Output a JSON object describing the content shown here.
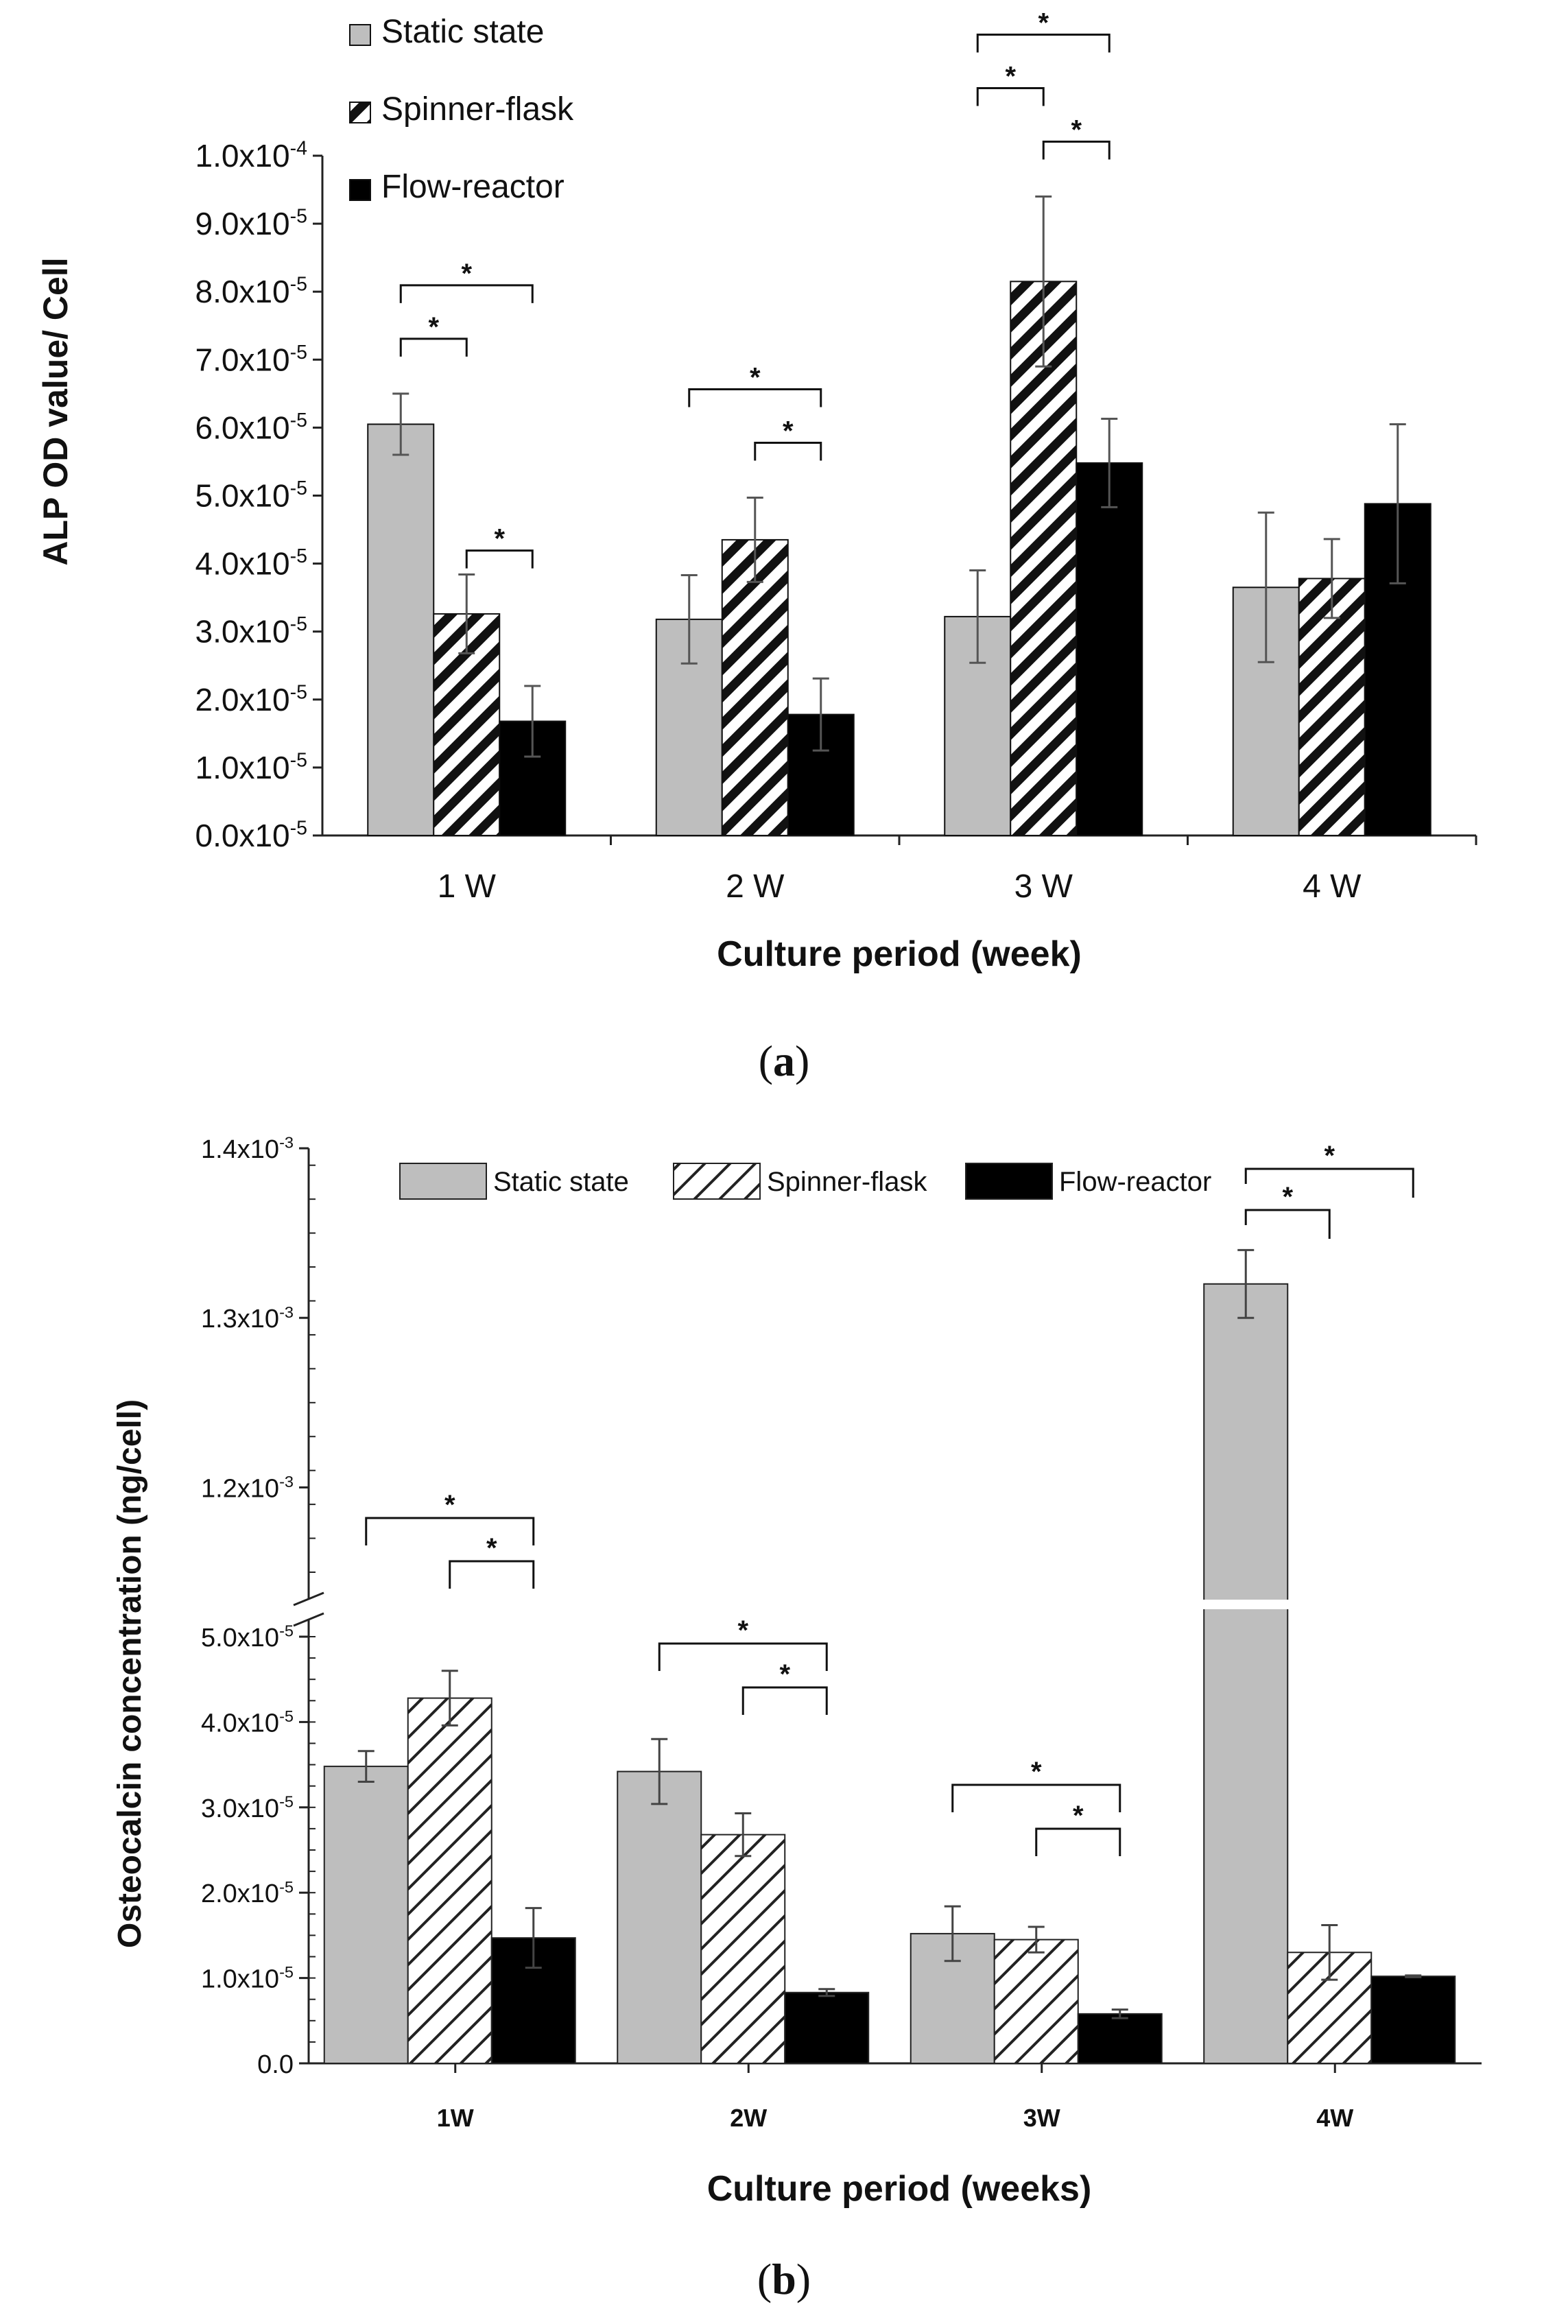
{
  "chart_data": [
    {
      "type": "bar",
      "panel_label": "a",
      "ylabel": "ALP OD value/ Cell",
      "xlabel": "Culture period (week)",
      "categories": [
        "1 W",
        "2 W",
        "3 W",
        "4 W"
      ],
      "ylim": [
        0,
        0.0001
      ],
      "yticks": [
        {
          "base": "0.0x10",
          "exp": "-5",
          "value": 0
        },
        {
          "base": "1.0x10",
          "exp": "-5",
          "value": 1e-05
        },
        {
          "base": "2.0x10",
          "exp": "-5",
          "value": 2e-05
        },
        {
          "base": "3.0x10",
          "exp": "-5",
          "value": 3e-05
        },
        {
          "base": "4.0x10",
          "exp": "-5",
          "value": 4e-05
        },
        {
          "base": "5.0x10",
          "exp": "-5",
          "value": 5e-05
        },
        {
          "base": "6.0x10",
          "exp": "-5",
          "value": 6e-05
        },
        {
          "base": "7.0x10",
          "exp": "-5",
          "value": 7e-05
        },
        {
          "base": "8.0x10",
          "exp": "-5",
          "value": 8e-05
        },
        {
          "base": "9.0x10",
          "exp": "-5",
          "value": 9e-05
        },
        {
          "base": "1.0x10",
          "exp": "-4",
          "value": 0.0001
        }
      ],
      "series": [
        {
          "name": "Static state",
          "style": "gray",
          "values": [
            6.05e-05,
            3.18e-05,
            3.22e-05,
            3.65e-05
          ],
          "errors": [
            4.5e-06,
            6.5e-06,
            6.8e-06,
            1.1e-05
          ]
        },
        {
          "name": "Spinner-flask",
          "style": "hatch",
          "values": [
            3.26e-05,
            4.35e-05,
            8.15e-05,
            3.78e-05
          ],
          "errors": [
            5.8e-06,
            6.2e-06,
            1.25e-05,
            5.8e-06
          ]
        },
        {
          "name": "Flow-reactor",
          "style": "black",
          "values": [
            1.68e-05,
            1.78e-05,
            5.48e-05,
            4.88e-05
          ],
          "errors": [
            5.2e-06,
            5.3e-06,
            6.5e-06,
            1.17e-05
          ]
        }
      ],
      "significance": [
        {
          "category": 0,
          "from": 0,
          "to": 1,
          "level": 0,
          "label": "*"
        },
        {
          "category": 0,
          "from": 0,
          "to": 2,
          "level": 1,
          "label": "*"
        },
        {
          "category": 0,
          "from": 1,
          "to": 2,
          "level": -1,
          "label": "*"
        },
        {
          "category": 1,
          "from": 0,
          "to": 2,
          "level": 1,
          "label": "*"
        },
        {
          "category": 1,
          "from": 1,
          "to": 2,
          "level": 0,
          "label": "*"
        },
        {
          "category": 2,
          "from": 0,
          "to": 1,
          "level": 1,
          "label": "*"
        },
        {
          "category": 2,
          "from": 0,
          "to": 2,
          "level": 2,
          "label": "*"
        },
        {
          "category": 2,
          "from": 1,
          "to": 2,
          "level": 0,
          "label": "*"
        }
      ],
      "legend_position": "top-left"
    },
    {
      "type": "bar",
      "panel_label": "b",
      "ylabel": "Osteocalcin concentration (ng/cell)",
      "xlabel": "Culture period (weeks)",
      "categories": [
        "1W",
        "2W",
        "3W",
        "4W"
      ],
      "broken_axis": true,
      "lower_ylim": [
        0,
        5e-05
      ],
      "upper_ylim": [
        0.00115,
        0.0014
      ],
      "lower_yticks": [
        {
          "base": "0.0",
          "exp": "",
          "value": 0
        },
        {
          "base": "1.0x10",
          "exp": "-5",
          "value": 1e-05
        },
        {
          "base": "2.0x10",
          "exp": "-5",
          "value": 2e-05
        },
        {
          "base": "3.0x10",
          "exp": "-5",
          "value": 3e-05
        },
        {
          "base": "4.0x10",
          "exp": "-5",
          "value": 4e-05
        },
        {
          "base": "5.0x10",
          "exp": "-5",
          "value": 5e-05
        }
      ],
      "upper_yticks": [
        {
          "base": "1.2x10",
          "exp": "-3",
          "value": 0.0012
        },
        {
          "base": "1.3x10",
          "exp": "-3",
          "value": 0.0013
        },
        {
          "base": "1.4x10",
          "exp": "-3",
          "value": 0.0014
        }
      ],
      "series": [
        {
          "name": "Static state",
          "style": "gray",
          "values": [
            3.48e-05,
            3.42e-05,
            1.52e-05,
            0.00132
          ],
          "errors": [
            1.8e-06,
            3.8e-06,
            3.2e-06,
            2e-05
          ]
        },
        {
          "name": "Spinner-flask",
          "style": "hatch",
          "values": [
            4.28e-05,
            2.68e-05,
            1.45e-05,
            1.3e-05
          ],
          "errors": [
            3.2e-06,
            2.5e-06,
            1.5e-06,
            3.2e-06
          ]
        },
        {
          "name": "Flow-reactor",
          "style": "black",
          "values": [
            1.47e-05,
            8.3e-06,
            5.8e-06,
            1.02e-05
          ],
          "errors": [
            3.5e-06,
            4e-07,
            5e-07,
            1e-07
          ]
        }
      ],
      "significance": [
        {
          "category": 0,
          "from": 0,
          "to": 2,
          "level": 1,
          "label": "*"
        },
        {
          "category": 0,
          "from": 1,
          "to": 2,
          "level": 0,
          "label": "*"
        },
        {
          "category": 1,
          "from": 0,
          "to": 2,
          "level": 1,
          "label": "*"
        },
        {
          "category": 1,
          "from": 1,
          "to": 2,
          "level": 0,
          "label": "*"
        },
        {
          "category": 2,
          "from": 0,
          "to": 2,
          "level": 1,
          "label": "*"
        },
        {
          "category": 2,
          "from": 1,
          "to": 2,
          "level": 0,
          "label": "*"
        },
        {
          "category": 3,
          "from": 0,
          "to": 1,
          "level": 0,
          "label": "*"
        },
        {
          "category": 3,
          "from": 0,
          "to": 2,
          "level": 1,
          "label": "*"
        }
      ],
      "legend_position": "top"
    }
  ],
  "captions": {
    "a": "a",
    "b": "b"
  }
}
